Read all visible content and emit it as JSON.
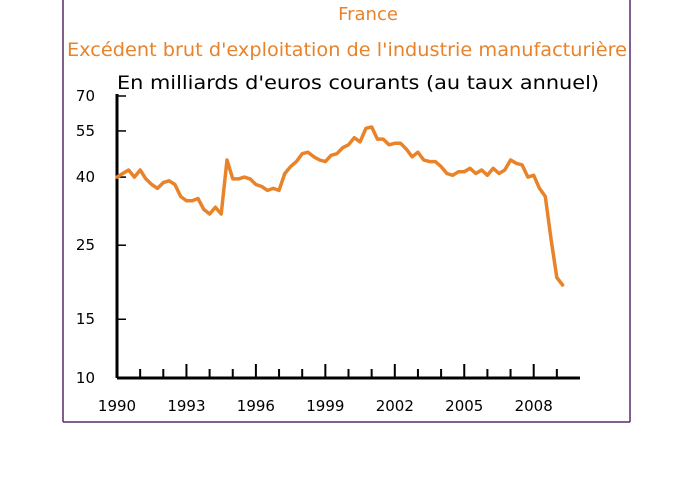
{
  "chart_data": {
    "type": "line",
    "title": "France",
    "subtitle": "Excédent brut d'exploitation de l'industrie manufacturière",
    "ylabel": "En milliards d'euros courants (au taux annuel)",
    "xlabel": "",
    "y_scale": "log",
    "ylim": [
      10,
      70
    ],
    "xlim": [
      1990,
      2010
    ],
    "y_ticks": [
      10,
      15,
      25,
      40,
      55,
      70
    ],
    "y_tick_labels": [
      "10",
      "15",
      "25",
      "40",
      "55",
      "70"
    ],
    "x_ticks": [
      1990,
      1993,
      1996,
      1999,
      2002,
      2005,
      2008
    ],
    "x_tick_labels": [
      "1990",
      "1993",
      "1996",
      "1999",
      "2002",
      "2005",
      "2008"
    ],
    "grid": false,
    "legend": "none",
    "line_color": "#E8832A",
    "frame_color": "#5A2A6A",
    "series": [
      {
        "x": [
          1990.0,
          1990.25,
          1990.5,
          1990.75,
          1991.0,
          1991.25,
          1991.5,
          1991.75,
          1992.0,
          1992.25,
          1992.5,
          1992.75,
          1993.0,
          1993.25,
          1993.5,
          1993.75,
          1994.0,
          1994.25,
          1994.5,
          1994.75,
          1995.0,
          1995.25,
          1995.5,
          1995.75,
          1996.0,
          1996.25,
          1996.5,
          1996.75,
          1997.0,
          1997.25,
          1997.5,
          1997.75,
          1998.0,
          1998.25,
          1998.5,
          1998.75,
          1999.0,
          1999.25,
          1999.5,
          1999.75,
          2000.0,
          2000.25,
          2000.5,
          2000.75,
          2001.0,
          2001.25,
          2001.5,
          2001.75,
          2002.0,
          2002.25,
          2002.5,
          2002.75,
          2003.0,
          2003.25,
          2003.5,
          2003.75,
          2004.0,
          2004.25,
          2004.5,
          2004.75,
          2005.0,
          2005.25,
          2005.5,
          2005.75,
          2006.0,
          2006.25,
          2006.5,
          2006.75,
          2007.0,
          2007.25,
          2007.5,
          2007.75,
          2008.0,
          2008.25,
          2008.5,
          2008.75,
          2009.0,
          2009.25
        ],
        "values": [
          40.0,
          41.0,
          42.0,
          40.0,
          42.0,
          39.5,
          38.0,
          37.0,
          38.5,
          39.0,
          38.0,
          35.0,
          34.0,
          34.0,
          34.5,
          32.0,
          31.0,
          32.5,
          31.0,
          45.0,
          39.5,
          39.5,
          40.0,
          39.5,
          38.0,
          37.5,
          36.5,
          37.0,
          36.5,
          41.0,
          43.0,
          44.5,
          47.0,
          47.5,
          46.0,
          45.0,
          44.5,
          46.5,
          47.0,
          49.0,
          50.0,
          52.5,
          51.0,
          56.0,
          56.5,
          52.0,
          52.0,
          50.0,
          50.5,
          50.5,
          48.5,
          46.0,
          47.5,
          45.0,
          44.5,
          44.5,
          43.0,
          41.0,
          40.5,
          41.5,
          41.5,
          42.5,
          41.0,
          42.0,
          40.5,
          42.5,
          41.0,
          42.0,
          45.0,
          44.0,
          43.5,
          40.0,
          40.5,
          37.0,
          35.0,
          26.0,
          20.0,
          19.0
        ]
      }
    ]
  }
}
